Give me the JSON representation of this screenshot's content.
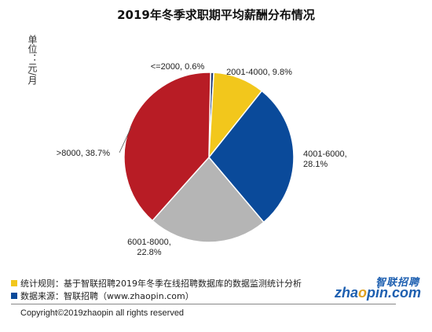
{
  "title": "2019年冬季求职期平均薪酬分布情况",
  "unit_label": "单位：元/月",
  "chart_data": {
    "type": "pie",
    "title": "2019年冬季求职期平均薪酬分布情况",
    "unit": "元/月",
    "slices": [
      {
        "label": "<=2000",
        "value": 0.6,
        "display": "<=2000, 0.6%",
        "color": "#1f3a78"
      },
      {
        "label": "2001-4000",
        "value": 9.8,
        "display": "2001-4000, 9.8%",
        "color": "#f2c71c"
      },
      {
        "label": "4001-6000",
        "value": 28.1,
        "display": "4001-6000,\n28.1%",
        "color": "#0a4a9a"
      },
      {
        "label": "6001-8000",
        "value": 22.8,
        "display": "6001-8000,\n22.8%",
        "color": "#b5b5b5"
      },
      {
        "label": ">8000",
        "value": 38.7,
        "display": ">8000, 38.7%",
        "color": "#b81c25"
      }
    ]
  },
  "footnotes": [
    {
      "text": "统计规则：基于智联招聘2019年冬季在线招聘数据库的数据监测统计分析",
      "color": "#f2c71c"
    },
    {
      "text": "数据来源：智联招聘（www.zhaopin.com）",
      "color": "#0a4a9a"
    }
  ],
  "logo": {
    "cn": "智联招聘",
    "en_prefix": "zha",
    "en_o": "o",
    "en_suffix": "pin.com"
  },
  "copyright": "Copyright©2019zhaopin all rights reserved"
}
